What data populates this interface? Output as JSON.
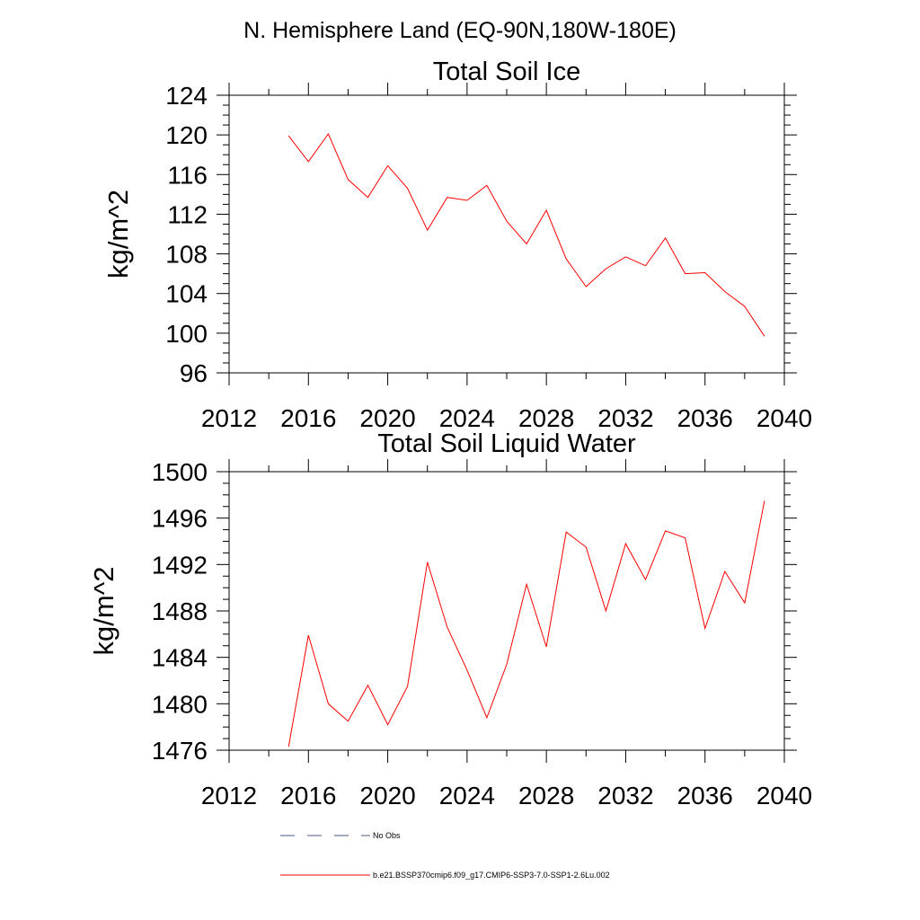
{
  "figure_title": "N. Hemisphere Land (EQ-90N,180W-180E)",
  "legend": {
    "items": [
      {
        "label": "No Obs",
        "color": "#4a5a8a",
        "style": "dashed"
      },
      {
        "label": "b.e21.BSSP370cmip6.f09_g17.CMIP6-SSP3-7.0-SSP1-2.6Lu.002",
        "color": "#ff0000",
        "style": "solid"
      }
    ]
  },
  "chart_data": [
    {
      "type": "line",
      "title": "Total Soil Ice",
      "xlabel": "",
      "ylabel": "kg/m^2",
      "xlim": [
        2012,
        2040
      ],
      "ylim": [
        96,
        124
      ],
      "xticks": [
        2012,
        2016,
        2020,
        2024,
        2028,
        2032,
        2036,
        2040
      ],
      "yticks": [
        96,
        100,
        104,
        108,
        112,
        116,
        120,
        124
      ],
      "x_minor_step": 2,
      "y_minor_step": 1,
      "grid": false,
      "line_color": "#ff0000",
      "series": [
        {
          "x": [
            2015,
            2016,
            2017,
            2018,
            2019,
            2020,
            2021,
            2022,
            2023,
            2024,
            2025,
            2026,
            2027,
            2028,
            2029,
            2030,
            2031,
            2032,
            2033,
            2034,
            2035,
            2036,
            2037,
            2038,
            2039
          ],
          "values": [
            119.9,
            117.3,
            120.1,
            115.5,
            113.7,
            116.9,
            114.6,
            110.4,
            113.7,
            113.4,
            114.9,
            111.3,
            109.0,
            112.4,
            107.5,
            104.7,
            106.5,
            107.7,
            106.8,
            109.6,
            106.0,
            106.1,
            104.2,
            102.7,
            99.7
          ]
        }
      ]
    },
    {
      "type": "line",
      "title": "Total Soil Liquid Water",
      "xlabel": "",
      "ylabel": "kg/m^2",
      "xlim": [
        2012,
        2040
      ],
      "ylim": [
        1476,
        1500
      ],
      "xticks": [
        2012,
        2016,
        2020,
        2024,
        2028,
        2032,
        2036,
        2040
      ],
      "yticks": [
        1476,
        1480,
        1484,
        1488,
        1492,
        1496,
        1500
      ],
      "x_minor_step": 2,
      "y_minor_step": 1,
      "grid": false,
      "line_color": "#ff0000",
      "series": [
        {
          "x": [
            2015,
            2016,
            2017,
            2018,
            2019,
            2020,
            2021,
            2022,
            2023,
            2024,
            2025,
            2026,
            2027,
            2028,
            2029,
            2030,
            2031,
            2032,
            2033,
            2034,
            2035,
            2036,
            2037,
            2038,
            2039
          ],
          "values": [
            1476.3,
            1485.9,
            1480.0,
            1478.5,
            1481.6,
            1478.2,
            1481.5,
            1492.2,
            1486.6,
            1482.9,
            1478.8,
            1483.4,
            1490.3,
            1484.9,
            1494.8,
            1493.5,
            1488.0,
            1493.8,
            1490.7,
            1494.9,
            1494.3,
            1486.5,
            1491.4,
            1488.7,
            1497.5
          ]
        }
      ]
    }
  ]
}
